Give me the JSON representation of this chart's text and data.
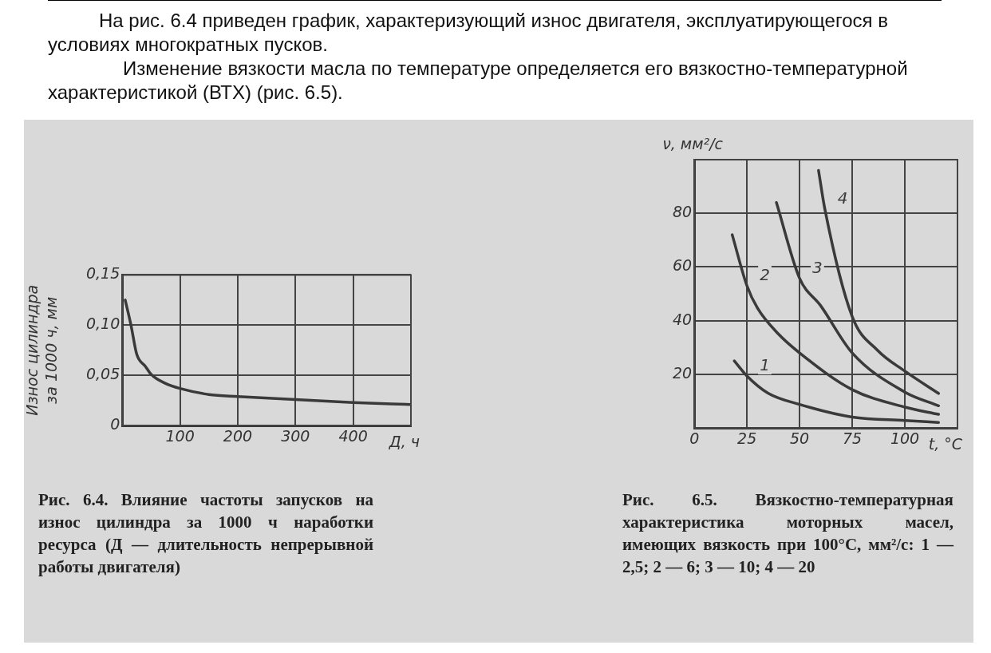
{
  "chart_data": [
    {
      "type": "line",
      "title": "Рис. 6.4. Влияние частоты запусков на износ цилиндра за 1000 ч наработки ресурса (Д — длительность непрерывной работы двигателя)",
      "annotations": [
        "На рис. 6.4 приведен график, характеризующий износ двигателя, эксплуатирующегося в условиях многократных пусков.",
        "Изменение вязкости масла по температуре определяется его вязкостно-температурной характеристикой (ВТХ) (рис. 6.5)."
      ],
      "xlabel": "Д, ч",
      "ylabel": "Износ цилиндра за 1000 ч, мм",
      "xlim": [
        0,
        500
      ],
      "xticks": [
        100,
        200,
        300,
        400
      ],
      "ylim": [
        0,
        0.15
      ],
      "yticks": [
        {
          "value": 0,
          "label": "0"
        },
        {
          "value": 0.05,
          "label": "0,05"
        },
        {
          "value": 0.1,
          "label": "0,10"
        },
        {
          "value": 0.15,
          "label": "0,15"
        }
      ],
      "grid": true,
      "legend": false,
      "marker": "none",
      "line_style": "solid",
      "series": [
        {
          "color": "#3a3a3a",
          "x": [
            5,
            15,
            25,
            40,
            50,
            75,
            100,
            150,
            200,
            300,
            400,
            500
          ],
          "values": [
            0.125,
            0.1,
            0.071,
            0.059,
            0.051,
            0.042,
            0.037,
            0.031,
            0.029,
            0.026,
            0.023,
            0.021
          ]
        }
      ]
    },
    {
      "type": "line",
      "title": "Рис. 6.5. Вязкостно-температурная характеристика моторных масел, имеющих вязкость при 100°С, мм²/с: 1 — 2,5; 2 — 6; 3 — 10; 4 — 20",
      "xlabel": "t, °C",
      "ylabel": "ν, мм²/с",
      "xlim": [
        0,
        125
      ],
      "xticks": [
        0,
        25,
        50,
        75,
        100
      ],
      "ylim": [
        0,
        100
      ],
      "yticks": [
        20,
        40,
        60,
        80
      ],
      "grid": true,
      "legend": false,
      "marker": "none",
      "line_style": "solid",
      "series": [
        {
          "name": "1",
          "color": "#3a3a3a",
          "x": [
            19,
            25,
            35,
            50,
            75,
            100,
            116
          ],
          "values": [
            25,
            19.4,
            13,
            8.8,
            4.1,
            2.8,
            2.1
          ]
        },
        {
          "name": "2",
          "color": "#3a3a3a",
          "x": [
            18,
            25,
            30,
            40,
            50,
            75,
            100,
            116
          ],
          "values": [
            72,
            53,
            44.7,
            35,
            28,
            14.3,
            7.8,
            5.1
          ]
        },
        {
          "name": "3",
          "color": "#3a3a3a",
          "x": [
            39,
            50,
            60,
            75,
            100,
            116
          ],
          "values": [
            84,
            55.8,
            45.6,
            28,
            13.4,
            8.3
          ]
        },
        {
          "name": "4",
          "color": "#3a3a3a",
          "x": [
            59,
            62,
            75,
            87,
            100,
            116
          ],
          "values": [
            96,
            81.6,
            41.5,
            29,
            21.2,
            12.9
          ]
        }
      ]
    }
  ]
}
